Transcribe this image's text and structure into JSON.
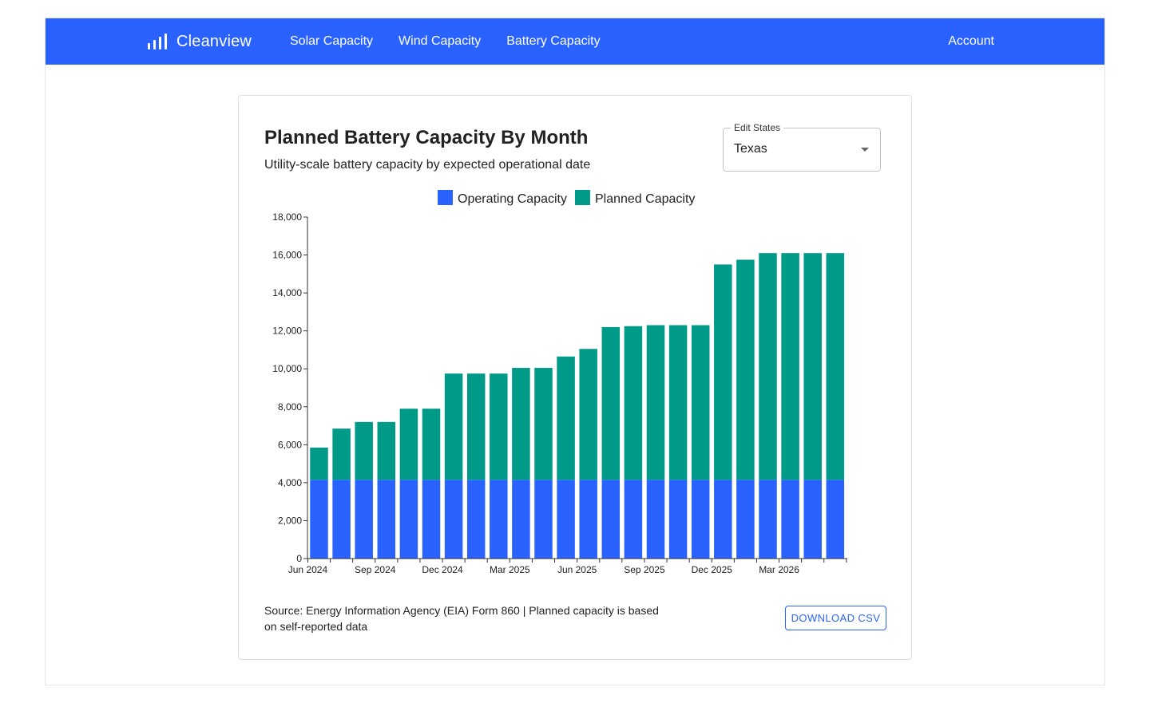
{
  "navbar": {
    "brand": "Cleanview",
    "links": [
      "Solar Capacity",
      "Wind Capacity",
      "Battery Capacity"
    ],
    "account": "Account",
    "color": "#2962ff"
  },
  "card": {
    "title": "Planned Battery Capacity By Month",
    "subtitle": "Utility-scale battery capacity by expected operational date",
    "select": {
      "label": "Edit States",
      "value": "Texas"
    },
    "source": "Source: Energy Information Agency (EIA) Form 860 | Planned capacity is based on self-reported data",
    "download_label": "DOWNLOAD CSV"
  },
  "chart_data": {
    "type": "bar",
    "stacked": true,
    "title": "",
    "xlabel": "",
    "ylabel": "",
    "ylim": [
      0,
      18000
    ],
    "yticks": [
      0,
      2000,
      4000,
      6000,
      8000,
      10000,
      12000,
      14000,
      16000,
      18000
    ],
    "ytick_labels": [
      "0",
      "2,000",
      "4,000",
      "6,000",
      "8,000",
      "10,000",
      "12,000",
      "14,000",
      "16,000",
      "18,000"
    ],
    "categories": [
      "Jun 2024",
      "Jul 2024",
      "Aug 2024",
      "Sep 2024",
      "Oct 2024",
      "Nov 2024",
      "Dec 2024",
      "Jan 2025",
      "Feb 2025",
      "Mar 2025",
      "Apr 2025",
      "May 2025",
      "Jun 2025",
      "Jul 2025",
      "Aug 2025",
      "Sep 2025",
      "Oct 2025",
      "Nov 2025",
      "Dec 2025",
      "Jan 2026",
      "Feb 2026",
      "Mar 2026",
      "Apr 2026",
      "May 2026"
    ],
    "xtick_labels": [
      "Jun 2024",
      "Sep 2024",
      "Dec 2024",
      "Mar 2025",
      "Jun 2025",
      "Sep 2025",
      "Dec 2025",
      "Mar 2026"
    ],
    "legend_position": "top-center",
    "grid": false,
    "series": [
      {
        "name": "Operating Capacity",
        "color": "#2962ff",
        "values": [
          4150,
          4150,
          4150,
          4150,
          4150,
          4150,
          4150,
          4150,
          4150,
          4150,
          4150,
          4150,
          4150,
          4150,
          4150,
          4150,
          4150,
          4150,
          4150,
          4150,
          4150,
          4150,
          4150,
          4150
        ]
      },
      {
        "name": "Planned Capacity",
        "color": "#009a88",
        "values": [
          1700,
          2700,
          3050,
          3050,
          3750,
          3750,
          5600,
          5600,
          5600,
          5900,
          5900,
          6500,
          6900,
          8050,
          8100,
          8150,
          8150,
          8150,
          11350,
          11600,
          11950,
          11950,
          11950,
          11950
        ]
      }
    ]
  }
}
